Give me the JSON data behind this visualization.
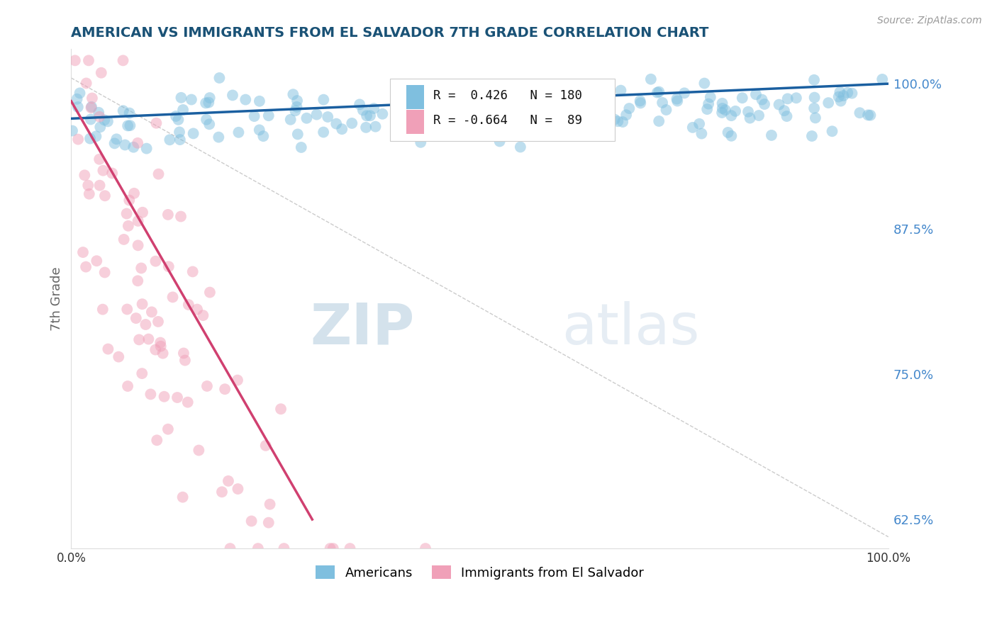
{
  "title": "AMERICAN VS IMMIGRANTS FROM EL SALVADOR 7TH GRADE CORRELATION CHART",
  "source_text": "Source: ZipAtlas.com",
  "ylabel": "7th Grade",
  "xlim": [
    0.0,
    1.0
  ],
  "ylim": [
    0.6,
    1.03
  ],
  "yticks": [
    0.625,
    0.75,
    0.875,
    1.0
  ],
  "ytick_labels": [
    "62.5%",
    "75.0%",
    "87.5%",
    "100.0%"
  ],
  "xticks": [
    0.0,
    0.25,
    0.5,
    0.75,
    1.0
  ],
  "xtick_labels": [
    "0.0%",
    "",
    "",
    "",
    "100.0%"
  ],
  "blue_color": "#7fbfdf",
  "pink_color": "#f0a0b8",
  "blue_line_color": "#1a5fa0",
  "pink_line_color": "#d04070",
  "watermark_zip": "ZIP",
  "watermark_atlas": "atlas",
  "background_color": "#ffffff",
  "grid_color": "#cccccc",
  "title_color": "#1a5276",
  "axis_label_color": "#666666",
  "right_tick_color": "#4488cc",
  "blue_R": 0.426,
  "blue_N": 180,
  "pink_R": -0.664,
  "pink_N": 89
}
